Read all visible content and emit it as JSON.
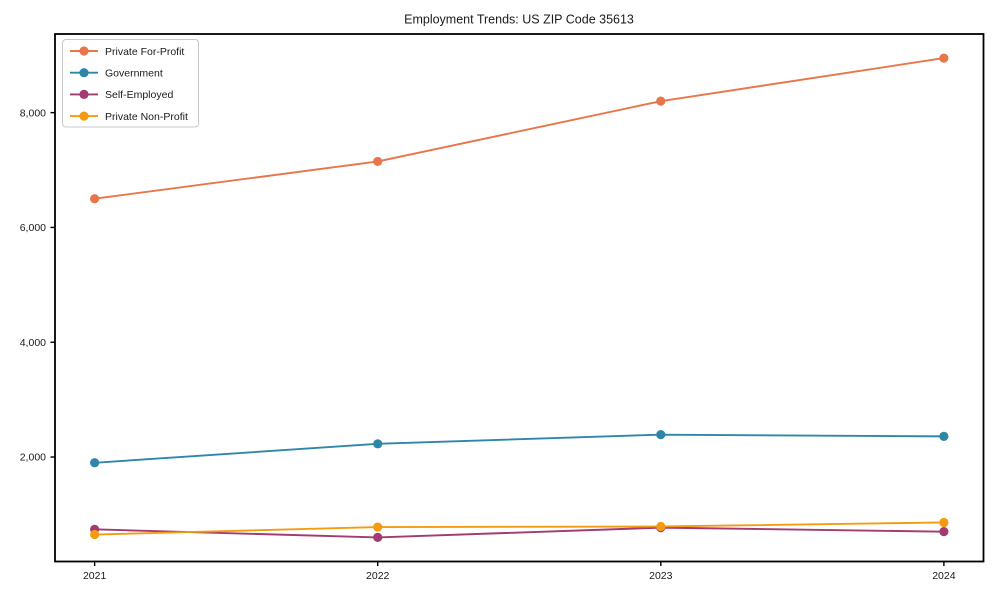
{
  "figure": {
    "title": "Employment Trends: US ZIP Code 35613"
  },
  "chart_data": {
    "type": "line",
    "title": "Employment Trends: US ZIP Code 35613",
    "xlabel": "",
    "ylabel": "",
    "x": [
      2021,
      2022,
      2023,
      2024
    ],
    "xtick_labels": [
      "2021",
      "2022",
      "2023",
      "2024"
    ],
    "yticks": [
      2000,
      4000,
      6000,
      8000
    ],
    "ytick_labels": [
      "2,000",
      "4,000",
      "6,000",
      "8,000"
    ],
    "xlim": [
      2020.86,
      2024.14
    ],
    "ylim": [
      180,
      9370
    ],
    "grid": false,
    "legend_position": "upper-left",
    "legend_entries": [
      "Private For-Profit",
      "Government",
      "Self-Employed",
      "Private Non-Profit"
    ],
    "series": [
      {
        "name": "Private For-Profit",
        "color": "#e8764c",
        "values": [
          6500,
          7150,
          8200,
          8950
        ]
      },
      {
        "name": "Government",
        "color": "#2e87a8",
        "values": [
          1900,
          2230,
          2390,
          2360
        ]
      },
      {
        "name": "Self-Employed",
        "color": "#a23b72",
        "values": [
          740,
          600,
          770,
          700
        ]
      },
      {
        "name": "Private Non-Profit",
        "color": "#f39c12",
        "values": [
          650,
          780,
          790,
          860
        ]
      }
    ]
  },
  "colors": {
    "background": "#ffffff",
    "spine": "#000000",
    "text": "#1a1a1a",
    "legend_border": "#c8c8c8",
    "legend_background": "#ffffff"
  }
}
